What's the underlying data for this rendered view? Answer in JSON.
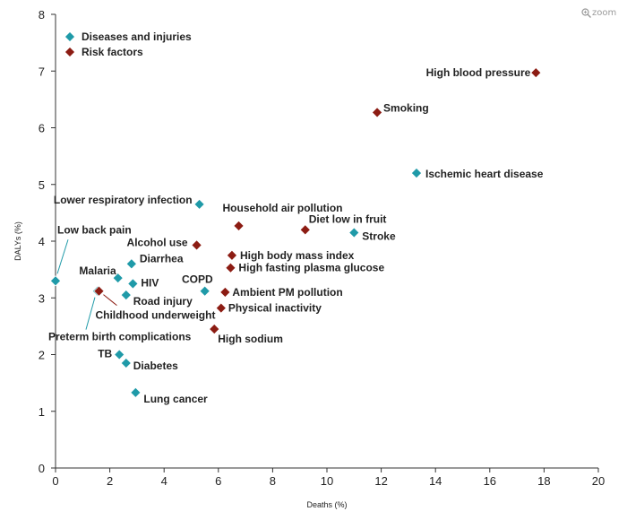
{
  "zoom_label": "zoom",
  "chart_data": {
    "type": "scatter",
    "xlabel": "Deaths (%)",
    "ylabel": "DALYs (%)",
    "xlim": [
      0,
      20
    ],
    "ylim": [
      0,
      8
    ],
    "xticks": [
      0,
      2,
      4,
      6,
      8,
      10,
      12,
      14,
      16,
      18,
      20
    ],
    "yticks": [
      0,
      1,
      2,
      3,
      4,
      5,
      6,
      7,
      8
    ],
    "grid": false,
    "legend_position": "top-left",
    "colors": {
      "Diseases and injuries": "#1f9aa8",
      "Risk factors": "#8c1c13"
    },
    "legend": [
      "Diseases and injuries",
      "Risk factors"
    ],
    "series": [
      {
        "name": "Diseases and injuries",
        "points": [
          {
            "label": "Ischemic heart disease",
            "x": 13.3,
            "y": 5.2
          },
          {
            "label": "Stroke",
            "x": 11.0,
            "y": 4.15
          },
          {
            "label": "Lower respiratory infection",
            "x": 5.3,
            "y": 4.65
          },
          {
            "label": "Low back pain",
            "x": 0.0,
            "y": 3.3
          },
          {
            "label": "Diarrhea",
            "x": 2.8,
            "y": 3.6
          },
          {
            "label": "Malaria",
            "x": 2.3,
            "y": 3.35
          },
          {
            "label": "HIV",
            "x": 2.85,
            "y": 3.25
          },
          {
            "label": "Road injury",
            "x": 2.6,
            "y": 3.05
          },
          {
            "label": "COPD",
            "x": 5.5,
            "y": 3.12
          },
          {
            "label": "Preterm birth complications",
            "x": 1.55,
            "y": 3.12
          },
          {
            "label": "TB",
            "x": 2.35,
            "y": 2.0
          },
          {
            "label": "Diabetes",
            "x": 2.6,
            "y": 1.85
          },
          {
            "label": "Lung cancer",
            "x": 2.95,
            "y": 1.33
          }
        ]
      },
      {
        "name": "Risk factors",
        "points": [
          {
            "label": "High blood pressure",
            "x": 17.7,
            "y": 6.97
          },
          {
            "label": "Smoking",
            "x": 11.85,
            "y": 6.27
          },
          {
            "label": "Household air pollution",
            "x": 6.75,
            "y": 4.27
          },
          {
            "label": "Diet low in fruit",
            "x": 9.2,
            "y": 4.2
          },
          {
            "label": "Alcohol use",
            "x": 5.2,
            "y": 3.93
          },
          {
            "label": "High body mass index",
            "x": 6.5,
            "y": 3.75
          },
          {
            "label": "High fasting plasma glucose",
            "x": 6.45,
            "y": 3.53
          },
          {
            "label": "Ambient PM pollution",
            "x": 6.25,
            "y": 3.1
          },
          {
            "label": "Physical inactivity",
            "x": 6.1,
            "y": 2.82
          },
          {
            "label": "High sodium",
            "x": 5.85,
            "y": 2.45
          },
          {
            "label": "Childhood underweight",
            "x": 1.6,
            "y": 3.12
          }
        ]
      }
    ]
  }
}
